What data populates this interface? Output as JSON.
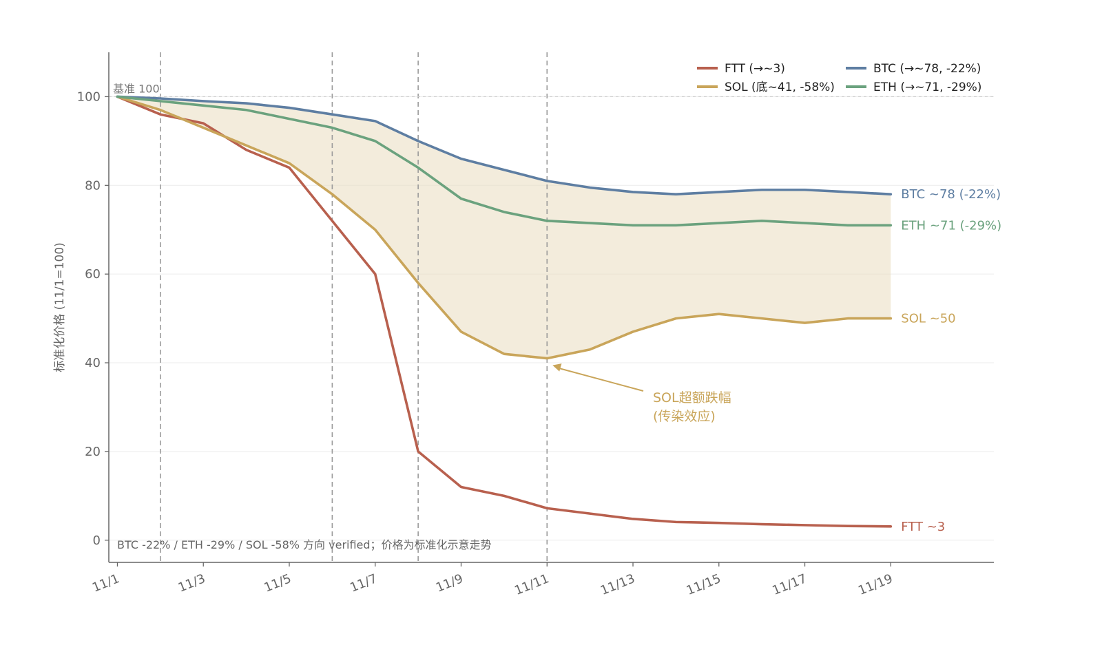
{
  "chart_data": {
    "type": "line",
    "ylabel": "标准化价格 (11/1=100)",
    "xlabel": "",
    "x": [
      1,
      2,
      3,
      4,
      5,
      6,
      7,
      8,
      9,
      10,
      11,
      12,
      13,
      14,
      15,
      16,
      17,
      18,
      19
    ],
    "x_ticks": [
      1,
      3,
      5,
      7,
      9,
      11,
      13,
      15,
      17,
      19
    ],
    "x_tick_labels": [
      "11/1",
      "11/3",
      "11/5",
      "11/7",
      "11/9",
      "11/11",
      "11/13",
      "11/15",
      "11/17",
      "11/19"
    ],
    "xlim": [
      0.8,
      21.4
    ],
    "ylim": [
      -5,
      110
    ],
    "y_ticks": [
      0,
      20,
      40,
      60,
      80,
      100
    ],
    "y_tick_labels": [
      "0",
      "20",
      "40",
      "60",
      "80",
      "100"
    ],
    "grid": "horizontal",
    "legend_position": "top-right",
    "series": [
      {
        "name": "FTT (→~3)",
        "color": "#b8604e",
        "values": [
          100,
          96,
          94,
          88,
          84,
          72,
          60,
          20,
          12,
          10,
          7.2,
          6,
          4.8,
          4.1,
          3.9,
          3.6,
          3.4,
          3.2,
          3.1
        ],
        "end_label": "FTT ~3"
      },
      {
        "name": "SOL (底~41, -58%)",
        "color": "#c9a55a",
        "values": [
          100,
          97,
          93,
          89,
          85,
          78,
          70,
          58,
          47,
          42,
          41,
          43,
          47,
          50,
          51,
          50,
          49,
          50,
          50
        ],
        "end_label": "SOL ~50"
      },
      {
        "name": "BTC (→~78, -22%)",
        "color": "#5e7ea2",
        "values": [
          100,
          99.6,
          99,
          98.5,
          97.5,
          96,
          94.5,
          90,
          86,
          83.5,
          81,
          79.5,
          78.5,
          78,
          78.5,
          79,
          79,
          78.5,
          78
        ],
        "end_label": "BTC ~78 (-22%)"
      },
      {
        "name": "ETH (→~71, -29%)",
        "color": "#6ba27e",
        "values": [
          100,
          99,
          98,
          97,
          95,
          93,
          90,
          84,
          77,
          74,
          72,
          71.5,
          71,
          71,
          71.5,
          72,
          71.5,
          71,
          71
        ],
        "end_label": "ETH ~71 (-29%)"
      }
    ],
    "shaded_band": {
      "between": [
        "BTC (→~78, -22%)",
        "SOL (底~41, -58%)"
      ],
      "color": "#e9dcc0"
    },
    "vertical_lines": [
      2,
      6,
      8,
      11
    ],
    "baseline": {
      "y": 100,
      "label": "基准 100"
    },
    "annotation": {
      "text_line1": "SOL超额跌幅",
      "text_line2": "(传染效应)",
      "point": [
        11,
        41
      ],
      "color": "#c9a55a"
    },
    "note": "BTC -22% / ETH -29% / SOL -58% 方向 verified；价格为标准化示意走势"
  }
}
